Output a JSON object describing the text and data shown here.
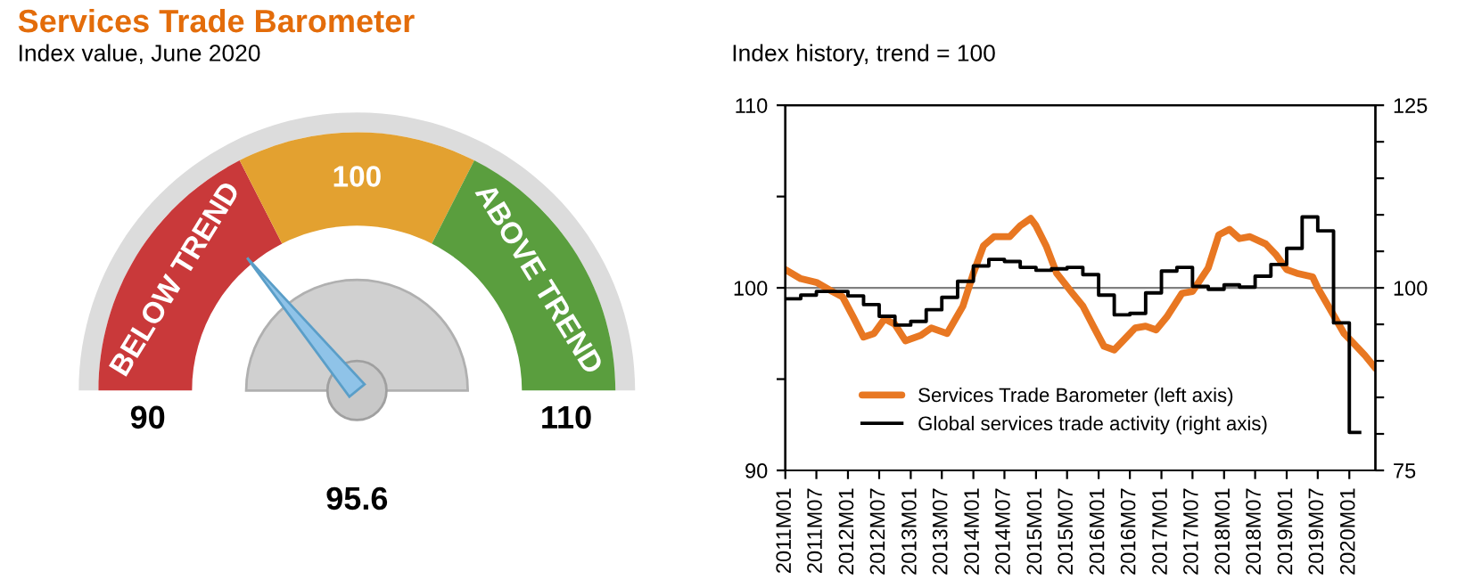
{
  "chart_data": [
    {
      "type": "donut",
      "title": "Services Trade Barometer",
      "subtitle": "Index value, June 2020",
      "categories": [
        "BELOW TREND",
        "100",
        "ABOVE TREND"
      ],
      "values": [
        35,
        30,
        35
      ],
      "colors": [
        "#c9393a",
        "#e3a130",
        "#5a9e3e"
      ],
      "needle": "BELOW TREND",
      "annotations": [
        "90",
        "110",
        "95.6"
      ]
    },
    {
      "type": "line",
      "subtitle": "Index history, trend = 100",
      "xlim": [
        "2011-01",
        "2020-06"
      ],
      "xticks": [
        {
          "value": "2011-01",
          "label": "2011M01"
        },
        {
          "value": "2011-07",
          "label": "2011M07"
        },
        {
          "value": "2012-01",
          "label": "2012M01"
        },
        {
          "value": "2012-07",
          "label": "2012M07"
        },
        {
          "value": "2013-01",
          "label": "2013M01"
        },
        {
          "value": "2013-07",
          "label": "2013M07"
        },
        {
          "value": "2014-01",
          "label": "2014M01"
        },
        {
          "value": "2014-07",
          "label": "2014M07"
        },
        {
          "value": "2015-01",
          "label": "2015M01"
        },
        {
          "value": "2015-07",
          "label": "2015M07"
        },
        {
          "value": "2016-01",
          "label": "2016M01"
        },
        {
          "value": "2016-07",
          "label": "2016M07"
        },
        {
          "value": "2017-01",
          "label": "2017M01"
        },
        {
          "value": "2017-07",
          "label": "2017M07"
        },
        {
          "value": "2018-01",
          "label": "2018M01"
        },
        {
          "value": "2018-07",
          "label": "2018M07"
        },
        {
          "value": "2019-01",
          "label": "2019M01"
        },
        {
          "value": "2019-07",
          "label": "2019M07"
        },
        {
          "value": "2020-01",
          "label": "2020M01"
        }
      ],
      "ylim": [
        90,
        110
      ],
      "yticks": [
        90,
        {
          "value": 95,
          "label": null
        },
        100,
        {
          "value": 105,
          "label": null
        },
        110
      ],
      "y2lim": [
        75,
        125
      ],
      "y2ticks": [
        75,
        {
          "value": 80,
          "label": null
        },
        {
          "value": 85,
          "label": null
        },
        {
          "value": 90,
          "label": null
        },
        {
          "value": 95,
          "label": null
        },
        100,
        {
          "value": 105,
          "label": null
        },
        {
          "value": 110,
          "label": null
        },
        {
          "value": 115,
          "label": null
        },
        {
          "value": 120,
          "label": null
        },
        125
      ],
      "ref_lines": [
        {
          "axis": "y",
          "value": 100,
          "color": "#808080"
        }
      ],
      "legend": "bottom left",
      "grid": false,
      "series": [
        {
          "name": "Services Trade Barometer (left axis)",
          "type": "line",
          "color": "#e87722",
          "x": [
            "2011-01",
            "2011-04",
            "2011-07",
            "2011-10",
            "2011-12",
            "2012-02",
            "2012-04",
            "2012-06",
            "2012-08",
            "2012-10",
            "2012-12",
            "2013-03",
            "2013-05",
            "2013-08",
            "2013-09",
            "2013-11",
            "2014-01",
            "2014-03",
            "2014-05",
            "2014-08",
            "2014-10",
            "2014-12",
            "2015-01",
            "2015-03",
            "2015-05",
            "2015-08",
            "2015-10",
            "2015-12",
            "2016-02",
            "2016-04",
            "2016-06",
            "2016-08",
            "2016-10",
            "2016-12",
            "2017-02",
            "2017-05",
            "2017-07",
            "2017-10",
            "2017-12",
            "2018-02",
            "2018-04",
            "2018-06",
            "2018-09",
            "2018-11",
            "2019-01",
            "2019-03",
            "2019-06",
            "2019-07",
            "2019-10",
            "2019-12",
            "2020-02",
            "2020-04",
            "2020-06"
          ],
          "values": [
            101.0,
            100.5,
            100.3,
            99.8,
            99.5,
            98.4,
            97.3,
            97.5,
            98.3,
            98.0,
            97.1,
            97.4,
            97.8,
            97.5,
            98.0,
            99.0,
            100.8,
            102.3,
            102.8,
            102.8,
            103.4,
            103.8,
            103.4,
            102.3,
            100.8,
            99.7,
            99.0,
            97.9,
            96.8,
            96.6,
            97.2,
            97.8,
            97.9,
            97.7,
            98.4,
            99.7,
            99.8,
            101.1,
            102.9,
            103.2,
            102.7,
            102.8,
            102.4,
            101.8,
            101.0,
            100.8,
            100.6,
            100.0,
            98.5,
            97.5,
            96.9,
            96.3,
            95.6
          ]
        },
        {
          "name": "Global services trade activity (right axis)",
          "type": "step",
          "axis": "y2",
          "color": "#000000",
          "x": [
            "2011-01",
            "2011-04",
            "2011-07",
            "2011-10",
            "2012-01",
            "2012-04",
            "2012-07",
            "2012-10",
            "2013-01",
            "2013-04",
            "2013-07",
            "2013-10",
            "2014-01",
            "2014-04",
            "2014-07",
            "2014-10",
            "2015-01",
            "2015-04",
            "2015-07",
            "2015-10",
            "2016-01",
            "2016-04",
            "2016-07",
            "2016-10",
            "2017-01",
            "2017-04",
            "2017-07",
            "2017-10",
            "2018-01",
            "2018-04",
            "2018-07",
            "2018-10",
            "2019-01",
            "2019-04",
            "2019-07",
            "2019-10",
            "2020-01",
            "2020-03"
          ],
          "values": [
            98.5,
            99.0,
            99.5,
            99.5,
            98.9,
            97.7,
            96.1,
            94.9,
            95.4,
            97.0,
            98.7,
            100.9,
            103.0,
            103.9,
            103.6,
            102.8,
            102.4,
            102.6,
            102.8,
            101.8,
            99.0,
            96.3,
            96.5,
            99.3,
            102.3,
            102.8,
            100.2,
            99.8,
            100.4,
            100.1,
            101.6,
            103.2,
            105.4,
            109.7,
            107.8,
            95.2,
            80.2,
            80.2
          ]
        }
      ]
    }
  ]
}
